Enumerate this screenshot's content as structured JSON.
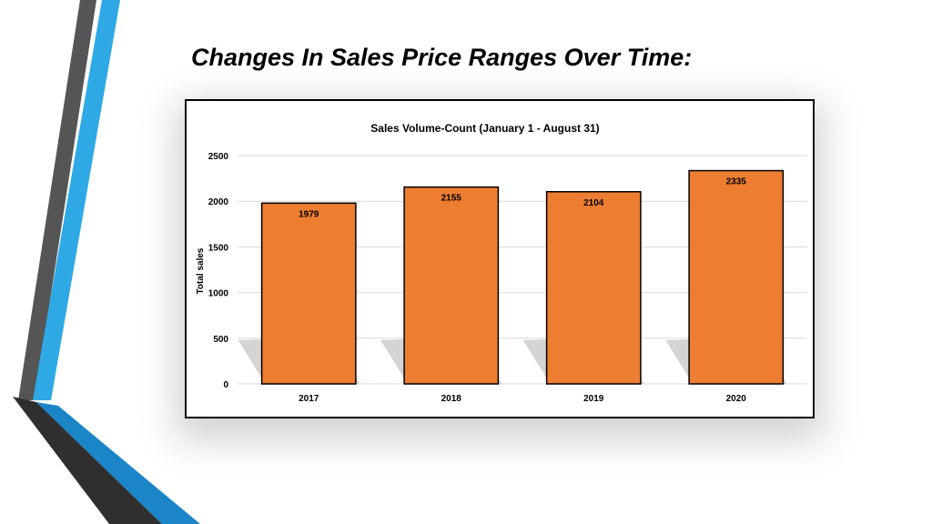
{
  "slide": {
    "title": "Changes In Sales Price Ranges Over Time:"
  },
  "colors": {
    "bar": "#ED7D31",
    "accent_blue": "#2EA9E6",
    "accent_gray": "#555555"
  },
  "chart_data": {
    "type": "bar",
    "title": "Sales Volume-Count (January 1 - August 31)",
    "xlabel": "",
    "ylabel": "Total sales",
    "categories": [
      "2017",
      "2018",
      "2019",
      "2020"
    ],
    "values": [
      1979,
      2155,
      2104,
      2335
    ],
    "data_labels": [
      "1979",
      "2155",
      "2104",
      "2335"
    ],
    "ylim": [
      0,
      2500
    ],
    "yticks": [
      "0",
      "500",
      "1000",
      "1500",
      "2000",
      "2500"
    ],
    "grid": true,
    "legend": "none"
  }
}
